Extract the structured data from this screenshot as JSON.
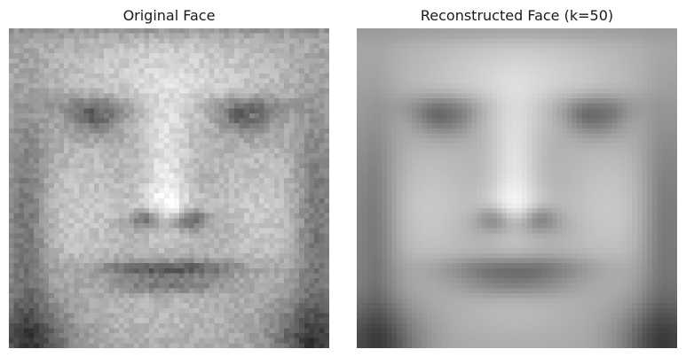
{
  "panels": [
    {
      "title": "Original Face",
      "rendering": "sharp"
    },
    {
      "title": "Reconstructed Face (k=50)",
      "rendering": "smoothed"
    }
  ],
  "palette": "grayscale"
}
